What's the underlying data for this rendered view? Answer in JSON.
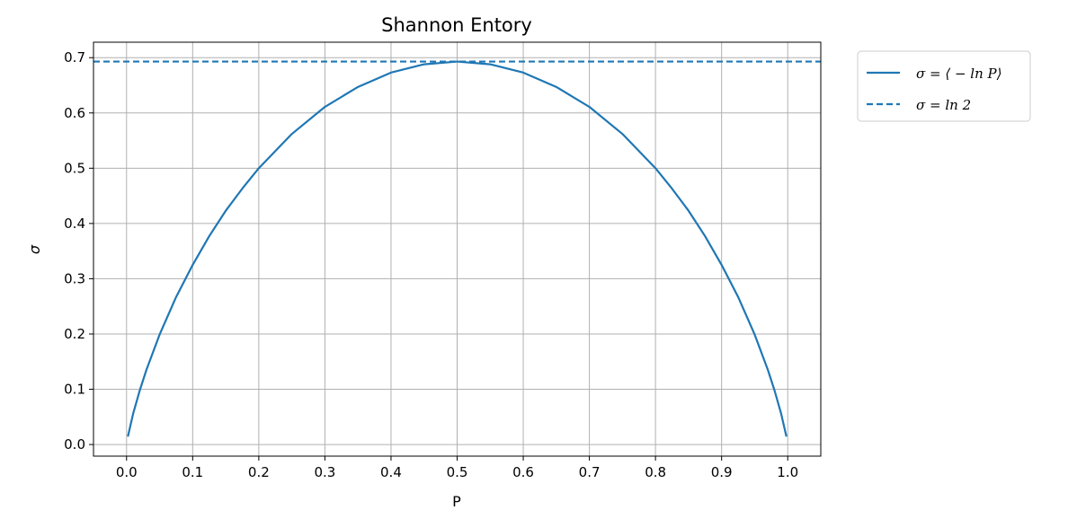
{
  "chart_data": {
    "type": "line",
    "title": "Shannon Entory",
    "xlabel": "P",
    "ylabel": "σ",
    "xlim": [
      -0.05,
      1.05
    ],
    "ylim": [
      -0.021,
      0.728
    ],
    "xticks": [
      0.0,
      0.1,
      0.2,
      0.3,
      0.4,
      0.5,
      0.6,
      0.7,
      0.8,
      0.9,
      1.0
    ],
    "xtick_labels": [
      "0.0",
      "0.1",
      "0.2",
      "0.3",
      "0.4",
      "0.5",
      "0.6",
      "0.7",
      "0.8",
      "0.9",
      "1.0"
    ],
    "yticks": [
      0.0,
      0.1,
      0.2,
      0.3,
      0.4,
      0.5,
      0.6,
      0.7
    ],
    "ytick_labels": [
      "0.0",
      "0.1",
      "0.2",
      "0.3",
      "0.4",
      "0.5",
      "0.6",
      "0.7"
    ],
    "grid": true,
    "legend_position": "outside-upper-right",
    "series": [
      {
        "name": "σ = ⟨ − ln P⟩",
        "style": "solid",
        "color": "#1f77b4",
        "x": [
          0.002,
          0.01,
          0.02,
          0.03,
          0.05,
          0.075,
          0.1,
          0.125,
          0.15,
          0.175,
          0.2,
          0.25,
          0.3,
          0.35,
          0.4,
          0.45,
          0.5,
          0.55,
          0.6,
          0.65,
          0.7,
          0.75,
          0.8,
          0.825,
          0.85,
          0.875,
          0.9,
          0.925,
          0.95,
          0.97,
          0.98,
          0.99,
          0.998
        ],
        "y": [
          0.0144,
          0.056,
          0.098,
          0.135,
          0.199,
          0.267,
          0.325,
          0.377,
          0.423,
          0.463,
          0.5,
          0.562,
          0.611,
          0.647,
          0.673,
          0.688,
          0.693,
          0.688,
          0.673,
          0.647,
          0.611,
          0.562,
          0.5,
          0.463,
          0.423,
          0.377,
          0.325,
          0.267,
          0.199,
          0.135,
          0.098,
          0.056,
          0.0144
        ]
      },
      {
        "name": "σ = ln 2",
        "style": "dashed",
        "color": "#1f77b4",
        "x": [
          -0.05,
          1.05
        ],
        "y": [
          0.693,
          0.693
        ]
      }
    ]
  }
}
